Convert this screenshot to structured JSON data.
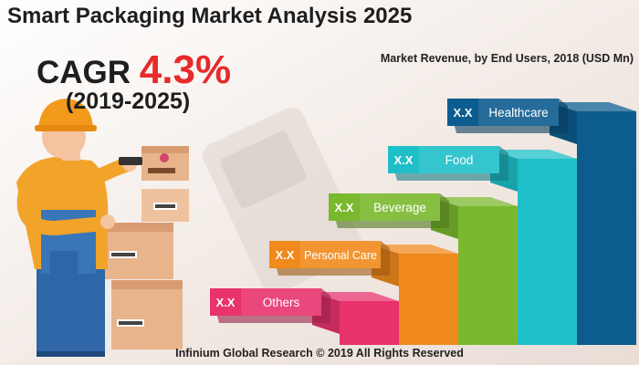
{
  "header": {
    "title": "Smart Packaging Market Analysis 2025",
    "cagr_label": "CAGR",
    "cagr_value": "4.3%",
    "period": "(2019-2025)"
  },
  "chart_data": {
    "type": "bar",
    "title": "Market Revenue, by End Users, 2018 (USD Mn)",
    "categories": [
      "Others",
      "Personal Care",
      "Beverage",
      "Food",
      "Healthcare"
    ],
    "value_labels": [
      "X.X",
      "X.X",
      "X.X",
      "X.X",
      "X.X"
    ],
    "colors": [
      "#e8336d",
      "#f08a1d",
      "#7ab82e",
      "#1fbfc9",
      "#0d5c8f"
    ]
  },
  "footer": {
    "credit": "Infinium Global Research © 2019 All Rights Reserved"
  }
}
